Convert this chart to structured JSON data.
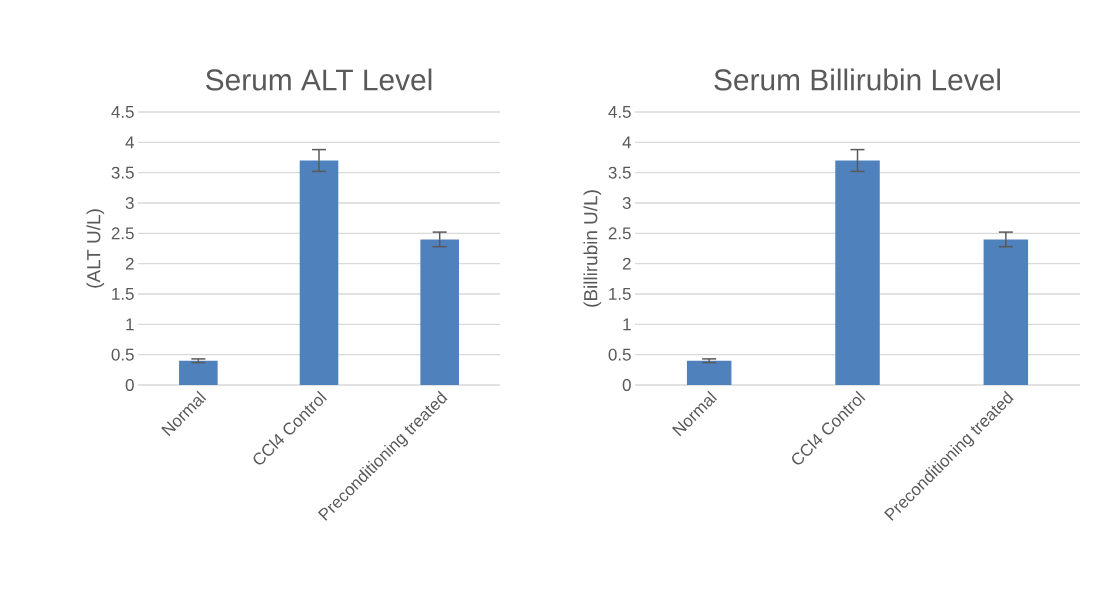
{
  "chart_data": [
    {
      "type": "bar",
      "title": "Serum ALT Level",
      "ylabel": "(ALT U/L)",
      "categories": [
        "Normal",
        "CCl4 Control",
        "Preconditioning treated"
      ],
      "values": [
        0.4,
        3.7,
        2.4
      ],
      "errors": [
        0.03,
        0.18,
        0.12
      ],
      "color": "#4f81bd",
      "ylim": [
        0,
        4.5
      ],
      "yticks": [
        0,
        0.5,
        1,
        1.5,
        2,
        2.5,
        3,
        3.5,
        4,
        4.5
      ],
      "grid": "y"
    },
    {
      "type": "bar",
      "title": "Serum Billirubin Level",
      "ylabel": "(Billirubin U/L)",
      "categories": [
        "Normal",
        "CCl4 Control",
        "Preconditioning treated"
      ],
      "values": [
        0.4,
        3.7,
        2.4
      ],
      "errors": [
        0.03,
        0.18,
        0.12
      ],
      "color": "#4f81bd",
      "ylim": [
        0,
        4.5
      ],
      "yticks": [
        0,
        0.5,
        1,
        1.5,
        2,
        2.5,
        3,
        3.5,
        4,
        4.5
      ],
      "grid": "y"
    }
  ]
}
